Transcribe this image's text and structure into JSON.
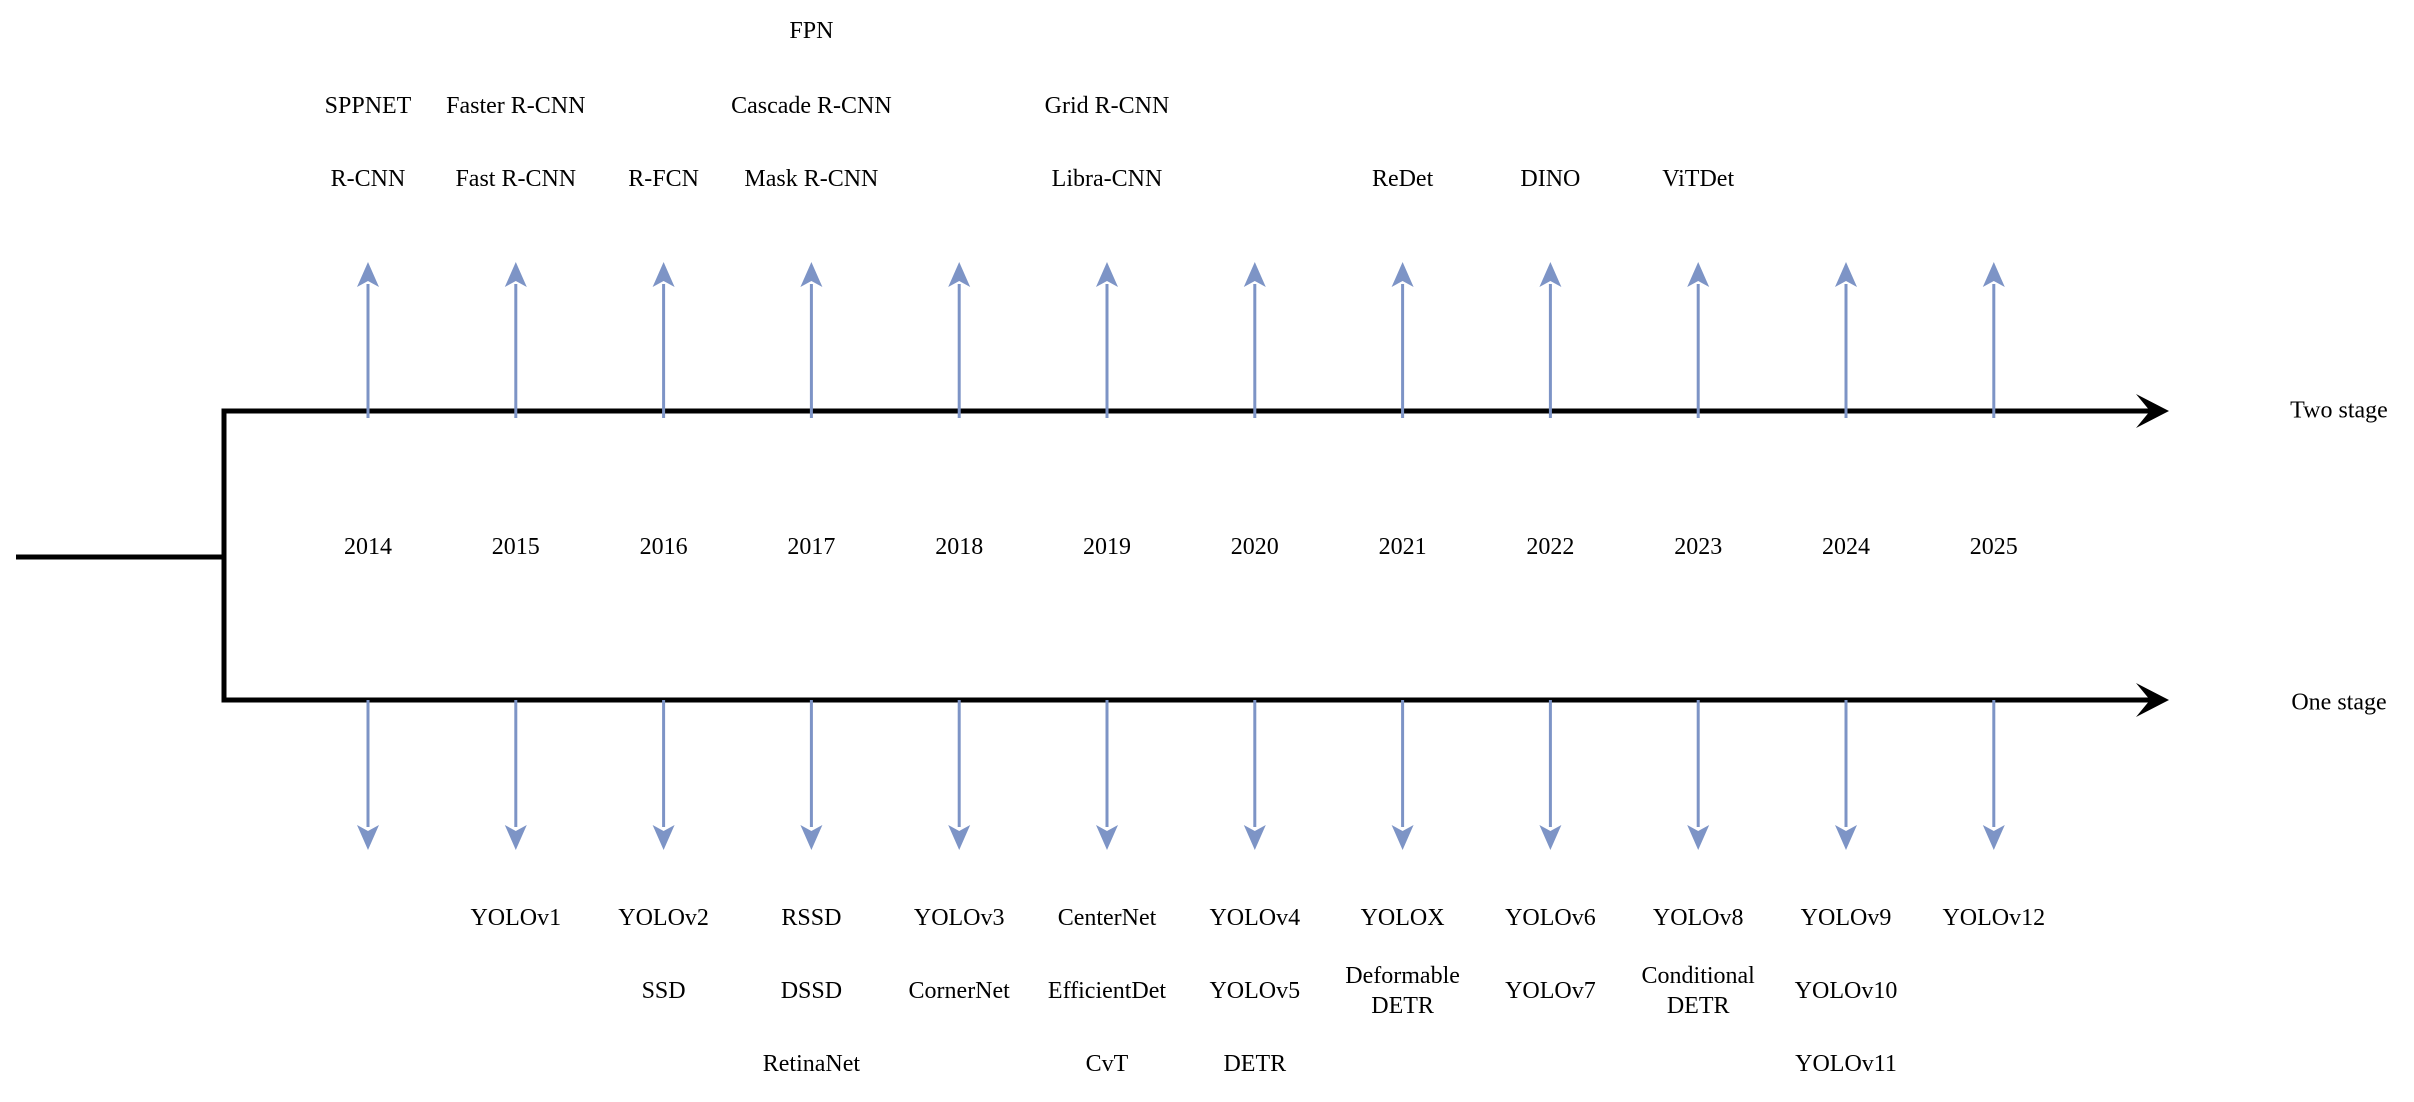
{
  "diagram": {
    "title_implicit": "Object detection models timeline",
    "branch_labels": {
      "top": "Two stage",
      "bottom": "One stage"
    },
    "columns": [
      {
        "year": "2014",
        "top": [
          "R-CNN",
          "SPPNET"
        ],
        "bottom": []
      },
      {
        "year": "2015",
        "top": [
          "Fast R-CNN",
          "Faster R-CNN"
        ],
        "bottom": [
          "YOLOv1"
        ]
      },
      {
        "year": "2016",
        "top": [
          "R-FCN"
        ],
        "bottom": [
          "YOLOv2",
          "SSD"
        ]
      },
      {
        "year": "2017",
        "top": [
          "Mask R-CNN",
          "Cascade R-CNN",
          "FPN"
        ],
        "bottom": [
          "RSSD",
          "DSSD",
          "RetinaNet"
        ]
      },
      {
        "year": "2018",
        "top": [],
        "bottom": [
          "YOLOv3",
          "CornerNet"
        ]
      },
      {
        "year": "2019",
        "top": [
          "Libra-CNN",
          "Grid R-CNN"
        ],
        "bottom": [
          "CenterNet",
          "EfficientDet",
          "CvT"
        ]
      },
      {
        "year": "2020",
        "top": [],
        "bottom": [
          "YOLOv4",
          "YOLOv5",
          "DETR"
        ]
      },
      {
        "year": "2021",
        "top": [
          "ReDet"
        ],
        "bottom": [
          "YOLOX",
          "Deformable\nDETR"
        ]
      },
      {
        "year": "2022",
        "top": [
          "DINO"
        ],
        "bottom": [
          "YOLOv6",
          "YOLOv7"
        ]
      },
      {
        "year": "2023",
        "top": [
          "ViTDet"
        ],
        "bottom": [
          "YOLOv8",
          "Conditional\nDETR"
        ]
      },
      {
        "year": "2024",
        "top": [],
        "bottom": [
          "YOLOv9",
          "YOLOv10",
          "YOLOv11"
        ]
      },
      {
        "year": "2025",
        "top": [],
        "bottom": [
          "YOLOv12"
        ]
      }
    ],
    "icons": {
      "up_arrow": "blue upward arrow",
      "down_arrow": "blue downward arrow",
      "right_arrow": "black rightward timeline arrow"
    },
    "colors": {
      "arrow_blue": "#7D94C6",
      "line_black": "#000000",
      "text": "#000000",
      "background": "#ffffff"
    }
  }
}
